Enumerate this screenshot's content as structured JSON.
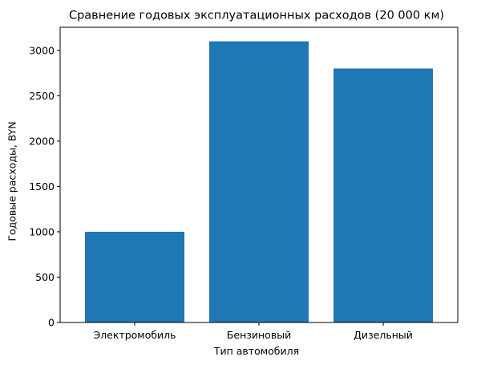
{
  "chart_data": {
    "type": "bar",
    "title": "Сравнение годовых эксплуатационных расходов (20 000 км)",
    "xlabel": "Тип автомобиля",
    "ylabel": "Годовые расходы, BYN",
    "categories": [
      "Электромобиль",
      "Бензиновый",
      "Дизельный"
    ],
    "values": [
      1000,
      3100,
      2800
    ],
    "ylim": [
      0,
      3255
    ],
    "yticks": [
      0,
      500,
      1000,
      1500,
      2000,
      2500,
      3000
    ],
    "bar_color": "#1f77b4",
    "grid": false,
    "legend": "none"
  }
}
